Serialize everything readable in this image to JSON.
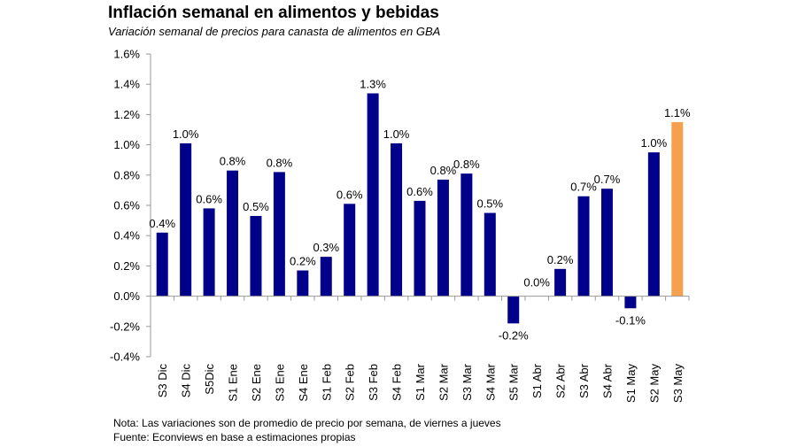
{
  "header": {
    "title": "Inflación semanal en alimentos y bebidas",
    "subtitle": "Variación semanal de precios para canasta de alimentos en GBA"
  },
  "notes": {
    "line1": "Nota: Las variaciones son de promedio de precio por semana, de viernes a jueves",
    "line2": "Fuente: Econviews en base a estimaciones propias"
  },
  "colors": {
    "bar": "#00008b",
    "highlight": "#f5a04c",
    "axis": "#999999"
  },
  "chart_data": {
    "type": "bar",
    "title": "Inflación semanal en alimentos y bebidas",
    "subtitle": "Variación semanal de precios para canasta de alimentos en GBA",
    "xlabel": "",
    "ylabel": "",
    "ylim": [
      -0.4,
      1.6
    ],
    "yticks": [
      "1.6%",
      "1.4%",
      "1.2%",
      "1.0%",
      "0.8%",
      "0.6%",
      "0.4%",
      "0.2%",
      "0.0%",
      "-0.2%",
      "-0.4%"
    ],
    "ytick_values": [
      1.6,
      1.4,
      1.2,
      1.0,
      0.8,
      0.6,
      0.4,
      0.2,
      0.0,
      -0.2,
      -0.4
    ],
    "grid": false,
    "categories": [
      "S3 Dic",
      "S4 Dic",
      "S5Dic",
      "S1 Ene",
      "S2 Ene",
      "S3 Ene",
      "S4 Ene",
      "S1 Feb",
      "S2 Feb",
      "S3 Feb",
      "S4 Feb",
      "S1 Mar",
      "S2 Mar",
      "S3 Mar",
      "S4 Mar",
      "S5 Mar",
      "S1 Abr",
      "S2 Abr",
      "S3 Abr",
      "S4 Abr",
      "S1 May",
      "S2 May",
      "S3 May"
    ],
    "values": [
      0.42,
      1.01,
      0.58,
      0.83,
      0.53,
      0.82,
      0.17,
      0.26,
      0.61,
      1.34,
      1.01,
      0.63,
      0.77,
      0.81,
      0.55,
      -0.18,
      0.0,
      0.18,
      0.66,
      0.71,
      -0.08,
      0.95,
      1.15
    ],
    "labels": [
      "0.4%",
      "1.0%",
      "0.6%",
      "0.8%",
      "0.5%",
      "0.8%",
      "0.2%",
      "0.3%",
      "0.6%",
      "1.3%",
      "1.0%",
      "0.6%",
      "0.8%",
      "0.8%",
      "0.5%",
      "-0.2%",
      "0.0%",
      "0.2%",
      "0.7%",
      "0.7%",
      "-0.1%",
      "1.0%",
      "1.1%"
    ],
    "highlight_index": 22
  }
}
